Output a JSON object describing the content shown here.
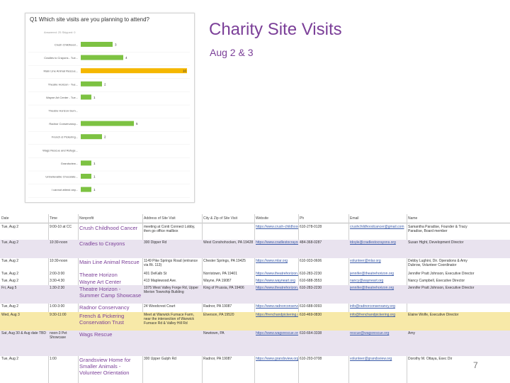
{
  "slide": {
    "title": "Charity Site Visits",
    "subtitle": "Aug 2 & 3",
    "page_number": "7"
  },
  "survey": {
    "question": "Q1  Which site visits are you planning to attend?",
    "meta": "Answered: 25    Skipped: 0"
  },
  "chart_data": {
    "type": "bar",
    "orientation": "horizontal",
    "title": "Q1 Which site visits are you planning to attend?",
    "categories": [
      "Crush Childhood...",
      "Cradles to Crayons - Tue...",
      "Main Line Animal Rescue...",
      "Theatre Horizon - Tue...",
      "Wayne Art Center - Tue...",
      "Theatre Horizon-Sum...",
      "Radnor Conservancy...",
      "French & Pickering...",
      "Wags Rescue and Refuge...",
      "Grandsview...",
      "Unbelievable Chocolate...",
      "I cannot attend any..."
    ],
    "values": [
      3,
      4,
      10,
      2,
      1,
      0,
      5,
      2,
      0,
      1,
      1,
      1
    ],
    "value_labels": [
      "3",
      "4",
      "10",
      "2",
      "1",
      "",
      "5",
      "2",
      "",
      "1",
      "1",
      "1"
    ],
    "bar_color": "#7dc242",
    "highlight_color": "#f5b700"
  },
  "table": {
    "headers": [
      "Date",
      "Time",
      "Nonprofit",
      "Address of Site Visit",
      "City & Zip of Site Visit",
      "Website",
      "Ph",
      "Email",
      "Name"
    ],
    "rows": [
      {
        "date": "Tue, Aug 2",
        "time": "9:00-10 at CC",
        "org": "Crush Childhood Cancer",
        "addr": "meeting at Conti Connect Lobby, then go office mailbox",
        "city": "",
        "web": "https://www.crush-childhood-cancer.org",
        "phone": "610-278-0128",
        "email": "crushchildhoodcancer@gmail.com",
        "contact": "Samantha Paradise, Founder & Tracy Paradise, Board member"
      },
      {
        "date": "Tue, Aug 2",
        "time": "10:30-noon",
        "org": "Cradles to Crayons",
        "addr": "300 Dipper Rd",
        "city": "West Conshohocken, PA 19428",
        "web": "https://www.cradlestocrayons.org",
        "phone": "484-368-0287",
        "email": "tdoyle@cradlestocrayons.org",
        "contact": "Susan Hight, Development Director"
      },
      {
        "date": "Tue, Aug 2",
        "time": "10:30-noon",
        "org": "Main Line Animal Rescue",
        "addr": "1149 Pike Springs Road (entrance via Rt. 113)",
        "city": "Chester Springs, PA 19425",
        "web": "https://www.mlar.org",
        "phone": "610-933-0606",
        "email": "volunteer@mlar.org",
        "contact": "Debby Lughini, Dir. Operations & Amy Dubrow, Volunteer Coordinator"
      },
      {
        "date": "Tue, Aug 2",
        "time": "2:00-3:00",
        "org": "Theatre Horizon",
        "addr": "401 DeKalb St",
        "city": "Norristown, PA 19401",
        "web": "https://www.theatrehorizon.org",
        "phone": "610-283-2230",
        "email": "jennifer@theatrehorizon.org",
        "contact": "Jennifer Pratt Johnson, Executive Director"
      },
      {
        "date": "Tue, Aug 2",
        "time": "3:30-4:30",
        "org": "Wayne Art Center",
        "addr": "413 Maplewood Ave.",
        "city": "Wayne, PA 19087",
        "web": "https://www.wayneart.org",
        "phone": "610-688-3553",
        "email": "nancy@wayneart.org",
        "contact": "Nancy Campbell, Executive Director"
      },
      {
        "date": "Fri, Aug 5",
        "time": "1:30-2:30",
        "org": "Theatre Horizon - Summer Camp Showcase",
        "addr": "1075 West Valley Forge Rd, Upper Merion Township Building",
        "city": "King of Prussia, PA 19406",
        "web": "https://www.theatrehorizon.org",
        "phone": "610-283-2230",
        "email": "jennifer@theatrehorizon.org",
        "contact": "Jennifer Pratt Johnson, Executive Director"
      },
      {
        "date": "Tue, Aug 2",
        "time": "1:00-3:00",
        "org": "Radnor Conservancy",
        "addr": "24 Woodcrest Court",
        "city": "Radnor, PA 19087",
        "web": "https://www.radnorconservancy.org",
        "phone": "610-688-0093",
        "email": "info@radnorconservancy.org",
        "contact": ""
      },
      {
        "date": "Wed, Aug 3",
        "time": "9:30-11:00",
        "org": "French & Pickering Conservation Trust",
        "addr": "Meet at Warwick Furnace Farm, near the intersection of Warwick Furnace Rd & Valley Hill Rd",
        "city": "Elverson, PA 19520",
        "web": "https://frenchandpickering.org",
        "phone": "610-469-0830",
        "email": "info@frenchandpickering.org",
        "contact": "Elaine Wolfe, Executive Director"
      },
      {
        "date": "Sat, Aug 30 & Aug date TBD",
        "time": "noon-3 Pet Showcase",
        "org": "Wags Rescue",
        "addr": "",
        "city": "Newtown, PA",
        "web": "https://www.wagsrescue.org",
        "phone": "610-664-3338",
        "email": "rescue@wagsrescue.org",
        "contact": "Amy"
      },
      {
        "date": "Tue, Aug 2",
        "time": "1:00",
        "org": "Grandsview Home for Smaller Animals - Volunteer Orientation",
        "addr": "300 Upper Gulph Rd",
        "city": "Radnor, PA 19087",
        "web": "https://www.grandsview.org",
        "phone": "610-293-0708",
        "email": "volunteer@grandsview.org",
        "contact": "Dorothy M. Ottaya, Exec Dir"
      }
    ]
  }
}
